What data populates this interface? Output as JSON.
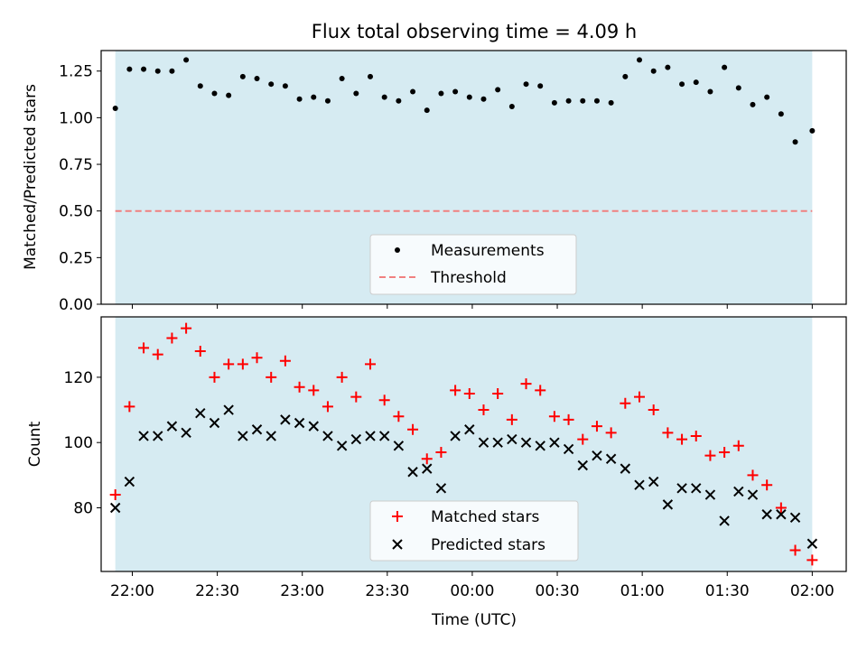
{
  "title": "Flux total observing time = 4.09 h",
  "xlabel": "Time (UTC)",
  "x_ticks": [
    "22:00",
    "22:30",
    "23:00",
    "23:30",
    "00:00",
    "00:30",
    "01:00",
    "01:30",
    "02:00"
  ],
  "colors": {
    "span": "#add8e6",
    "measurement": "#000000",
    "threshold": "#f08080",
    "matched": "#ff0000",
    "predicted": "#000000"
  },
  "chart_data": [
    {
      "type": "scatter",
      "name": "ratio-panel",
      "ylabel": "Matched/Predicted stars",
      "ylim": [
        0,
        1.36
      ],
      "y_ticks": [
        "0.00",
        "0.25",
        "0.50",
        "0.75",
        "1.00",
        "1.25"
      ],
      "xlim": [
        "21:49",
        "02:12"
      ],
      "shaded_span": [
        "21:54",
        "02:00"
      ],
      "threshold": 0.5,
      "legend": {
        "placement": "lower-center",
        "entries": [
          "Measurements",
          "Threshold"
        ]
      },
      "series": [
        {
          "name": "Measurements",
          "x": [
            "21:54",
            "21:59",
            "22:04",
            "22:09",
            "22:14",
            "22:19",
            "22:24",
            "22:29",
            "22:34",
            "22:39",
            "22:44",
            "22:49",
            "22:54",
            "22:59",
            "23:04",
            "23:09",
            "23:14",
            "23:19",
            "23:24",
            "23:29",
            "23:34",
            "23:39",
            "23:44",
            "23:49",
            "23:54",
            "23:59",
            "00:04",
            "00:09",
            "00:14",
            "00:19",
            "00:24",
            "00:29",
            "00:34",
            "00:39",
            "00:44",
            "00:49",
            "00:54",
            "00:59",
            "01:04",
            "01:09",
            "01:14",
            "01:19",
            "01:24",
            "01:29",
            "01:34",
            "01:39",
            "01:44",
            "01:49",
            "01:54",
            "02:00"
          ],
          "values": [
            1.05,
            1.26,
            1.26,
            1.25,
            1.25,
            1.31,
            1.17,
            1.13,
            1.12,
            1.22,
            1.21,
            1.18,
            1.17,
            1.1,
            1.11,
            1.09,
            1.21,
            1.13,
            1.22,
            1.11,
            1.09,
            1.14,
            1.04,
            1.13,
            1.14,
            1.11,
            1.1,
            1.15,
            1.06,
            1.18,
            1.17,
            1.08,
            1.09,
            1.09,
            1.09,
            1.08,
            1.22,
            1.31,
            1.25,
            1.27,
            1.18,
            1.19,
            1.14,
            1.27,
            1.16,
            1.07,
            1.11,
            1.02,
            0.87,
            0.93
          ]
        }
      ]
    },
    {
      "type": "scatter",
      "name": "count-panel",
      "ylabel": "Count",
      "ylim": [
        60.5,
        138.5
      ],
      "y_ticks": [
        "80",
        "100",
        "120"
      ],
      "xlim": [
        "21:49",
        "02:12"
      ],
      "shaded_span": [
        "21:54",
        "02:00"
      ],
      "legend": {
        "placement": "lower-center",
        "entries": [
          "Matched stars",
          "Predicted stars"
        ]
      },
      "x": [
        "21:54",
        "21:59",
        "22:04",
        "22:09",
        "22:14",
        "22:19",
        "22:24",
        "22:29",
        "22:34",
        "22:39",
        "22:44",
        "22:49",
        "22:54",
        "22:59",
        "23:04",
        "23:09",
        "23:14",
        "23:19",
        "23:24",
        "23:29",
        "23:34",
        "23:39",
        "23:44",
        "23:49",
        "23:54",
        "23:59",
        "00:04",
        "00:09",
        "00:14",
        "00:19",
        "00:24",
        "00:29",
        "00:34",
        "00:39",
        "00:44",
        "00:49",
        "00:54",
        "00:59",
        "01:04",
        "01:09",
        "01:14",
        "01:19",
        "01:24",
        "01:29",
        "01:34",
        "01:39",
        "01:44",
        "01:49",
        "01:54",
        "02:00"
      ],
      "series": [
        {
          "name": "Matched stars",
          "values": [
            84,
            111,
            129,
            127,
            132,
            135,
            128,
            120,
            124,
            124,
            126,
            120,
            125,
            117,
            116,
            111,
            120,
            114,
            124,
            113,
            108,
            104,
            95,
            97,
            116,
            115,
            110,
            115,
            107,
            118,
            116,
            108,
            107,
            101,
            105,
            103,
            112,
            114,
            110,
            103,
            101,
            102,
            96,
            97,
            99,
            90,
            87,
            80,
            67,
            64
          ]
        },
        {
          "name": "Predicted stars",
          "values": [
            80,
            88,
            102,
            102,
            105,
            103,
            109,
            106,
            110,
            102,
            104,
            102,
            107,
            106,
            105,
            102,
            99,
            101,
            102,
            102,
            99,
            91,
            92,
            86,
            102,
            104,
            100,
            100,
            101,
            100,
            99,
            100,
            98,
            93,
            96,
            95,
            92,
            87,
            88,
            81,
            86,
            86,
            84,
            76,
            85,
            84,
            78,
            78,
            77,
            69
          ]
        }
      ]
    }
  ]
}
